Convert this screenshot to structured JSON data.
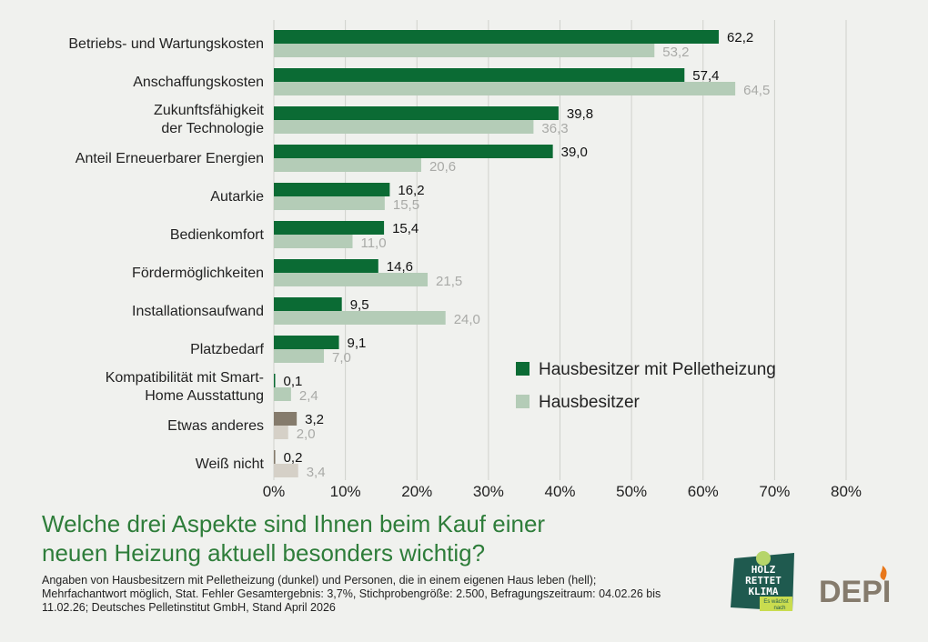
{
  "chart_data": {
    "type": "bar",
    "orientation": "horizontal",
    "title": "Welche drei Aspekte sind Ihnen beim Kauf einer neuen Heizung aktuell besonders wichtig?",
    "categories": [
      "Betriebs- und Wartungskosten",
      "Anschaffungskosten",
      "Zukunftsfähigkeit der Technologie",
      "Anteil Erneuerbarer Energien",
      "Autarkie",
      "Bedienkomfort",
      "Fördermöglichkeiten",
      "Installationsaufwand",
      "Platzbedarf",
      "Kompatibilität mit Smart-Home Ausstattung",
      "Etwas anderes",
      "Weiß nicht"
    ],
    "category_lines": [
      [
        "Betriebs- und Wartungskosten"
      ],
      [
        "Anschaffungskosten"
      ],
      [
        "Zukunftsfähigkeit",
        "der Technologie"
      ],
      [
        "Anteil Erneuerbarer Energien"
      ],
      [
        "Autarkie"
      ],
      [
        "Bedienkomfort"
      ],
      [
        "Fördermöglichkeiten"
      ],
      [
        "Installationsaufwand"
      ],
      [
        "Platzbedarf"
      ],
      [
        "Kompatibilität mit Smart-",
        "Home Ausstattung"
      ],
      [
        "Etwas anderes"
      ],
      [
        "Weiß nicht"
      ]
    ],
    "series": [
      {
        "name": "Hausbesitzer mit Pelletheizung",
        "color": "#0b6b34",
        "values": [
          62.2,
          57.4,
          39.8,
          39.0,
          16.2,
          15.4,
          14.6,
          9.5,
          9.1,
          0.1,
          3.2,
          0.2
        ],
        "labels": [
          "62,2",
          "57,4",
          "39,8",
          "39,0",
          "16,2",
          "15,4",
          "14,6",
          "9,5",
          "9,1",
          "0,1",
          "3,2",
          "0,2"
        ]
      },
      {
        "name": "Hausbesitzer",
        "color": "#b4ccb7",
        "values": [
          53.2,
          64.5,
          36.3,
          20.6,
          15.5,
          11.0,
          21.5,
          24.0,
          7.0,
          2.4,
          2.0,
          3.4
        ],
        "labels": [
          "53,2",
          "64,5",
          "36,3",
          "20,6",
          "15,5",
          "11,0",
          "21,5",
          "24,0",
          "7,0",
          "2,4",
          "2,0",
          "3,4"
        ]
      }
    ],
    "other_colors": {
      "dark": "#857b6c",
      "light": "#d5d0c7"
    },
    "xlim": [
      0,
      80
    ],
    "xticks": [
      "0%",
      "10%",
      "20%",
      "30%",
      "40%",
      "50%",
      "60%",
      "70%",
      "80%"
    ],
    "grid": true,
    "legend": "right-middle"
  },
  "title_lines": [
    "Welche drei Aspekte sind Ihnen beim Kauf einer",
    "neuen Heizung aktuell besonders wichtig?"
  ],
  "note": "Angaben von Hausbesitzern mit Pelletheizung (dunkel) und Personen, die in einem eigenen Haus leben (hell); Mehrfachantwort möglich, Stat. Fehler Gesamtergebnis: 3,7%, Stichprobengröße: 2.500, Befragungszeitraum: 04.02.26 bis 11.02.26; Deutsches Pelletinstitut GmbH, Stand April 2026",
  "logos": {
    "hrk": [
      "HOLZ",
      "RETTET",
      "KLIMA",
      "Es wächst",
      "nach"
    ],
    "depi": "DEPI"
  }
}
